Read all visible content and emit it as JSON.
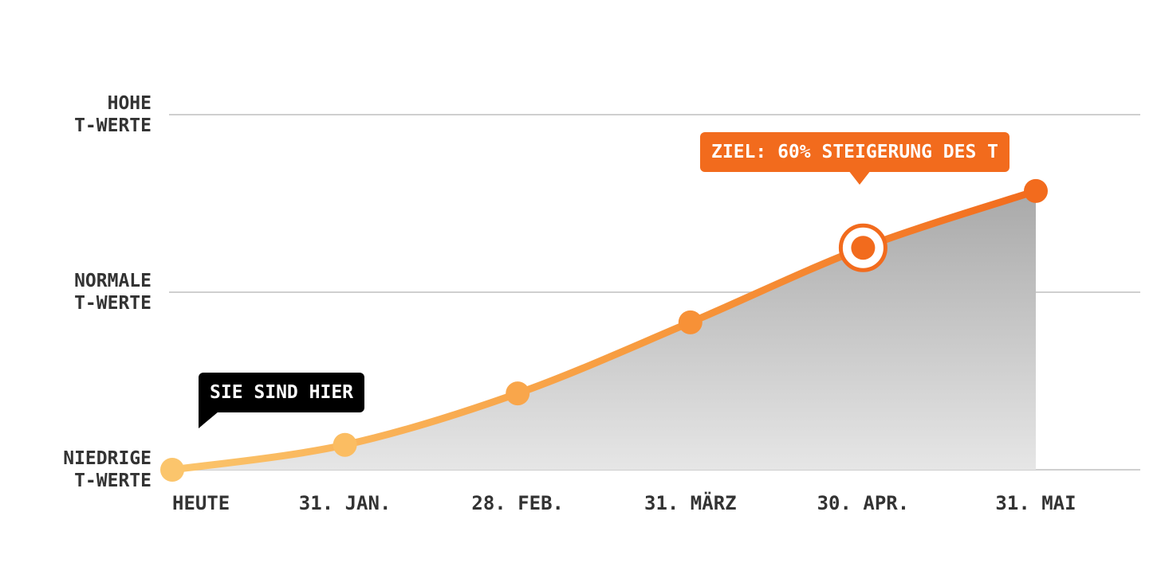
{
  "chart_data": {
    "type": "line",
    "categories": [
      "HEUTE",
      "31. JAN.",
      "28. FEB.",
      "31. MÄRZ",
      "30. APR.",
      "31. MAI"
    ],
    "series": [
      {
        "values": [
          0,
          0.14,
          0.43,
          0.83,
          1.25,
          1.57
        ],
        "color": "#f26b1d"
      }
    ],
    "ylim": [
      0,
      2
    ],
    "yticks": [
      {
        "value": 0,
        "label": "NIEDRIGE\nT-WERTE"
      },
      {
        "value": 1,
        "label": "NORMALE\nT-WERTE"
      },
      {
        "value": 2,
        "label": "HOHE\nT-WERTE"
      }
    ],
    "grid": true,
    "annotations": [
      "SIE SIND HIER",
      "ZIEL: 60% STEIGERUNG DES T"
    ]
  }
}
